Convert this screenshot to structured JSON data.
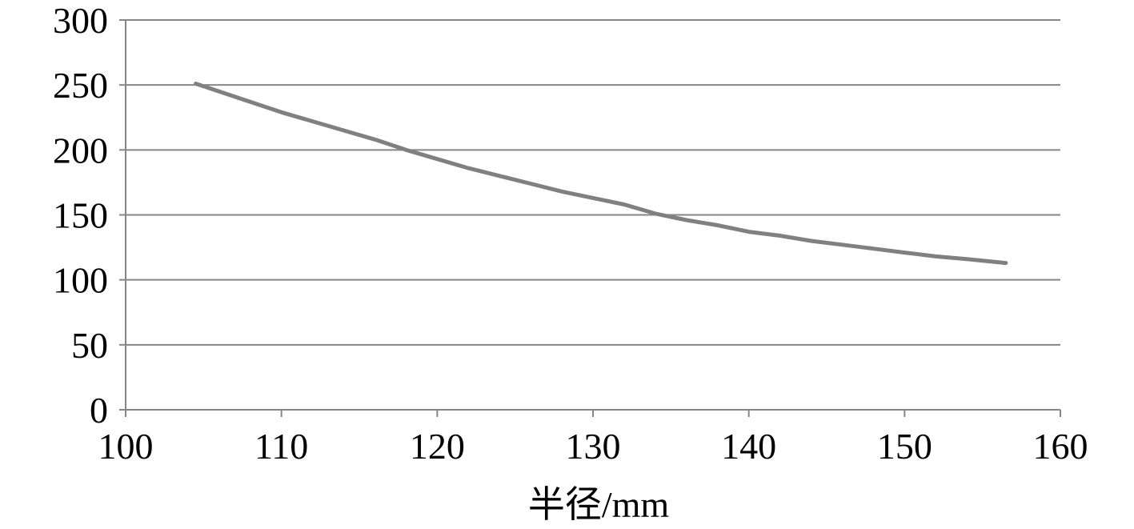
{
  "chart_data": {
    "type": "line",
    "title": "",
    "xlabel": "半径/mm",
    "ylabel": "",
    "xlim": [
      100,
      160
    ],
    "ylim": [
      0,
      300
    ],
    "x_ticks": [
      100,
      110,
      120,
      130,
      140,
      150,
      160
    ],
    "y_ticks": [
      0,
      50,
      100,
      150,
      200,
      250,
      300
    ],
    "grid": "horizontal",
    "legend": "none",
    "series": [
      {
        "color": "#808080",
        "x": [
          104.5,
          106,
          108,
          110,
          112,
          114,
          116,
          118,
          120,
          122,
          124,
          126,
          128,
          130,
          132,
          134,
          136,
          138,
          140,
          142,
          144,
          146,
          148,
          150,
          152,
          154,
          156.5
        ],
        "y": [
          251,
          245,
          237,
          229,
          222,
          215,
          208,
          200,
          193,
          186,
          180,
          174,
          168,
          163,
          158,
          151,
          146,
          142,
          137,
          134,
          130,
          127,
          124,
          121,
          118,
          116,
          113
        ]
      }
    ]
  }
}
